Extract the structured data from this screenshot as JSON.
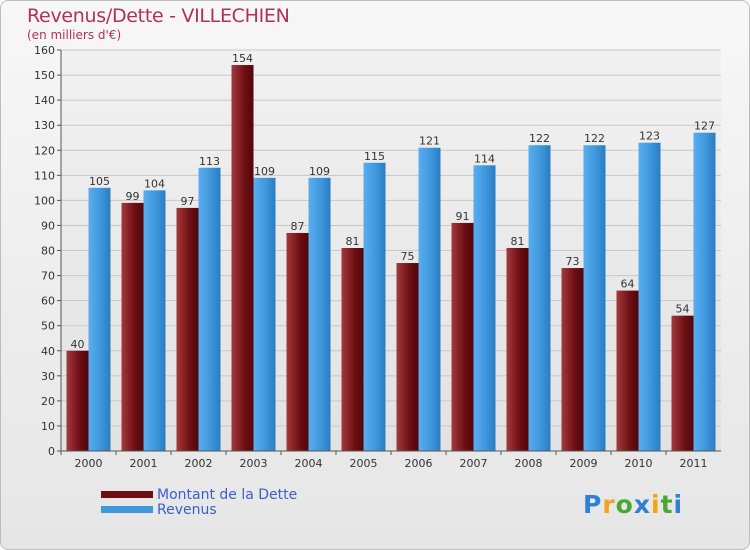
{
  "chart_data": {
    "type": "bar",
    "title": "Revenus/Dette - VILLECHIEN",
    "subtitle": "(en milliers d'€)",
    "xlabel": "",
    "ylabel": "",
    "ylim": [
      0,
      160
    ],
    "yticks": [
      0,
      10,
      20,
      30,
      40,
      50,
      60,
      70,
      80,
      90,
      100,
      110,
      120,
      130,
      140,
      150,
      160
    ],
    "grid": true,
    "legend_position": "bottom-left",
    "categories": [
      "2000",
      "2001",
      "2002",
      "2003",
      "2004",
      "2005",
      "2006",
      "2007",
      "2008",
      "2009",
      "2010",
      "2011"
    ],
    "series": [
      {
        "name": "Montant de la Dette",
        "color": "#7a1016",
        "values": [
          40,
          99,
          97,
          154,
          87,
          81,
          75,
          91,
          81,
          73,
          64,
          54
        ]
      },
      {
        "name": "Revenus",
        "color": "#3d98dc",
        "values": [
          105,
          104,
          113,
          109,
          109,
          115,
          121,
          114,
          122,
          122,
          123,
          127
        ]
      }
    ]
  },
  "logo": {
    "letters": [
      "P",
      "r",
      "o",
      "x",
      "i",
      "t",
      "i"
    ],
    "colors": [
      "#2e7fd6",
      "#f2a21b",
      "#4aa832",
      "#2e7fd6",
      "#f2a21b",
      "#4aa832",
      "#2e7fd6"
    ]
  }
}
